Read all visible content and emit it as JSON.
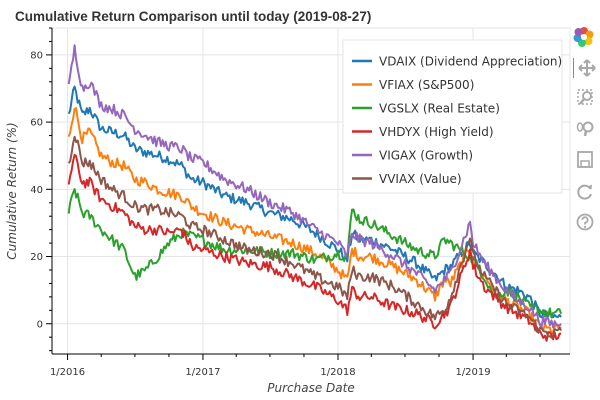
{
  "chart_data": {
    "type": "line",
    "title": "Cumulative Return Comparison until today (2019-08-27)",
    "xlabel": "Purchase Date",
    "ylabel": "Cumulative Return (%)",
    "x_tick_labels": [
      "1/2016",
      "1/2017",
      "1/2018",
      "1/2019"
    ],
    "xlim": [
      "2015-11-20",
      "2019-09-20"
    ],
    "ylim": [
      -9,
      88
    ],
    "y_ticks": [
      0,
      20,
      40,
      60,
      80
    ],
    "grid": true,
    "legend_position": "top-right",
    "series": [
      {
        "name": "VDAIX (Dividend Appreciation)",
        "color": "#1f77b4",
        "x": [
          "2016-01-04",
          "2016-01-20",
          "2016-02-10",
          "2016-03-01",
          "2016-04-01",
          "2016-05-01",
          "2016-06-01",
          "2016-07-01",
          "2016-08-01",
          "2016-09-01",
          "2016-10-01",
          "2016-11-04",
          "2016-12-01",
          "2017-01-01",
          "2017-03-01",
          "2017-05-01",
          "2017-07-01",
          "2017-09-01",
          "2017-11-01",
          "2018-01-01",
          "2018-01-26",
          "2018-02-08",
          "2018-03-01",
          "2018-04-01",
          "2018-06-01",
          "2018-08-01",
          "2018-09-20",
          "2018-10-15",
          "2018-11-01",
          "2018-12-24",
          "2019-01-01",
          "2019-02-01",
          "2019-03-01",
          "2019-04-01",
          "2019-05-01",
          "2019-06-01",
          "2019-07-01",
          "2019-08-01",
          "2019-08-27"
        ],
        "y": [
          62,
          70,
          62,
          64,
          58,
          57,
          56,
          52,
          51,
          50,
          49,
          47,
          43,
          42,
          38,
          36,
          33,
          31,
          27,
          22,
          19,
          27,
          25,
          25,
          22,
          18,
          13,
          16,
          17,
          24,
          21,
          18,
          15,
          11,
          10,
          8,
          3,
          2,
          2
        ]
      },
      {
        "name": "VFIAX (S&P500)",
        "color": "#ff7f0e",
        "x": [
          "2016-01-04",
          "2016-01-20",
          "2016-02-10",
          "2016-03-01",
          "2016-04-01",
          "2016-05-01",
          "2016-06-01",
          "2016-07-01",
          "2016-08-01",
          "2016-09-01",
          "2016-10-01",
          "2016-11-04",
          "2016-12-01",
          "2017-01-01",
          "2017-03-01",
          "2017-05-01",
          "2017-07-01",
          "2017-09-01",
          "2017-11-01",
          "2018-01-01",
          "2018-01-26",
          "2018-02-08",
          "2018-03-01",
          "2018-04-01",
          "2018-06-01",
          "2018-08-01",
          "2018-09-20",
          "2018-10-15",
          "2018-11-01",
          "2018-12-24",
          "2019-01-01",
          "2019-02-01",
          "2019-03-01",
          "2019-04-01",
          "2019-05-01",
          "2019-06-01",
          "2019-07-01",
          "2019-08-01",
          "2019-08-27"
        ],
        "y": [
          55,
          65,
          55,
          57,
          50,
          48,
          47,
          43,
          42,
          40,
          39,
          38,
          35,
          33,
          30,
          28,
          26,
          24,
          21,
          16,
          13,
          22,
          20,
          20,
          17,
          13,
          8,
          13,
          12,
          23,
          19,
          14,
          10,
          7,
          5,
          3,
          -1,
          -2,
          -1
        ]
      },
      {
        "name": "VGSLX (Real Estate)",
        "color": "#2ca02c",
        "x": [
          "2016-01-04",
          "2016-01-20",
          "2016-02-10",
          "2016-03-01",
          "2016-04-01",
          "2016-05-01",
          "2016-06-01",
          "2016-07-01",
          "2016-08-01",
          "2016-09-01",
          "2016-10-01",
          "2016-11-04",
          "2016-12-01",
          "2017-01-01",
          "2017-03-01",
          "2017-05-01",
          "2017-07-01",
          "2017-09-01",
          "2017-11-01",
          "2018-01-01",
          "2018-01-26",
          "2018-02-08",
          "2018-03-01",
          "2018-04-01",
          "2018-06-01",
          "2018-08-01",
          "2018-09-20",
          "2018-10-15",
          "2018-11-01",
          "2018-12-24",
          "2019-01-01",
          "2019-02-01",
          "2019-03-01",
          "2019-04-01",
          "2019-05-01",
          "2019-06-01",
          "2019-07-01",
          "2019-08-01",
          "2019-08-27"
        ],
        "y": [
          33,
          40,
          33,
          32,
          28,
          25,
          22,
          14,
          16,
          20,
          24,
          27,
          26,
          25,
          22,
          22,
          21,
          21,
          19,
          21,
          20,
          34,
          31,
          30,
          26,
          22,
          20,
          25,
          24,
          20,
          19,
          14,
          8,
          10,
          8,
          5,
          4,
          3,
          3
        ]
      },
      {
        "name": "VHDYX (High Yield)",
        "color": "#d62728",
        "x": [
          "2016-01-04",
          "2016-01-20",
          "2016-02-10",
          "2016-03-01",
          "2016-04-01",
          "2016-05-01",
          "2016-06-01",
          "2016-07-01",
          "2016-08-01",
          "2016-09-01",
          "2016-10-01",
          "2016-11-04",
          "2016-12-01",
          "2017-01-01",
          "2017-03-01",
          "2017-05-01",
          "2017-07-01",
          "2017-09-01",
          "2017-11-01",
          "2018-01-01",
          "2018-01-26",
          "2018-02-08",
          "2018-03-01",
          "2018-04-01",
          "2018-06-01",
          "2018-08-01",
          "2018-09-20",
          "2018-10-15",
          "2018-11-01",
          "2018-12-24",
          "2019-01-01",
          "2019-02-01",
          "2019-03-01",
          "2019-04-01",
          "2019-05-01",
          "2019-06-01",
          "2019-07-01",
          "2019-08-01",
          "2019-08-27"
        ],
        "y": [
          42,
          50,
          42,
          42,
          37,
          35,
          33,
          29,
          28,
          28,
          27,
          28,
          23,
          22,
          20,
          18,
          17,
          14,
          11,
          7,
          4,
          10,
          8,
          8,
          5,
          3,
          0,
          3,
          5,
          22,
          17,
          11,
          8,
          5,
          3,
          1,
          -3,
          -4,
          -3
        ]
      },
      {
        "name": "VIGAX (Growth)",
        "color": "#9467bd",
        "x": [
          "2016-01-04",
          "2016-01-20",
          "2016-02-10",
          "2016-03-01",
          "2016-04-01",
          "2016-05-01",
          "2016-06-01",
          "2016-07-01",
          "2016-08-01",
          "2016-09-01",
          "2016-10-01",
          "2016-11-04",
          "2016-12-01",
          "2017-01-01",
          "2017-03-01",
          "2017-05-01",
          "2017-07-01",
          "2017-09-01",
          "2017-11-01",
          "2018-01-01",
          "2018-01-26",
          "2018-02-08",
          "2018-03-01",
          "2018-04-01",
          "2018-06-01",
          "2018-08-01",
          "2018-09-20",
          "2018-10-15",
          "2018-11-01",
          "2018-12-24",
          "2019-01-01",
          "2019-02-01",
          "2019-03-01",
          "2019-04-01",
          "2019-05-01",
          "2019-06-01",
          "2019-07-01",
          "2019-08-01",
          "2019-08-27"
        ],
        "y": [
          70,
          82,
          70,
          72,
          65,
          64,
          62,
          58,
          56,
          54,
          53,
          52,
          49,
          48,
          43,
          40,
          36,
          33,
          28,
          24,
          20,
          27,
          25,
          24,
          20,
          15,
          10,
          13,
          15,
          30,
          24,
          18,
          14,
          10,
          7,
          5,
          1,
          0,
          0
        ]
      },
      {
        "name": "VVIAX (Value)",
        "color": "#8c564b",
        "x": [
          "2016-01-04",
          "2016-01-20",
          "2016-02-10",
          "2016-03-01",
          "2016-04-01",
          "2016-05-01",
          "2016-06-01",
          "2016-07-01",
          "2016-08-01",
          "2016-09-01",
          "2016-10-01",
          "2016-11-04",
          "2016-12-01",
          "2017-01-01",
          "2017-03-01",
          "2017-05-01",
          "2017-07-01",
          "2017-09-01",
          "2017-11-01",
          "2018-01-01",
          "2018-01-26",
          "2018-02-08",
          "2018-03-01",
          "2018-04-01",
          "2018-06-01",
          "2018-08-01",
          "2018-09-20",
          "2018-10-15",
          "2018-11-01",
          "2018-12-24",
          "2019-01-01",
          "2019-02-01",
          "2019-03-01",
          "2019-04-01",
          "2019-05-01",
          "2019-06-01",
          "2019-07-01",
          "2019-08-01",
          "2019-08-27"
        ],
        "y": [
          47,
          57,
          48,
          48,
          43,
          40,
          38,
          35,
          34,
          34,
          33,
          32,
          29,
          28,
          25,
          22,
          21,
          18,
          14,
          11,
          8,
          16,
          14,
          14,
          11,
          6,
          2,
          4,
          8,
          26,
          20,
          14,
          10,
          6,
          4,
          2,
          -2,
          -3,
          -2
        ]
      }
    ]
  },
  "toolbar": {
    "items": [
      {
        "name": "bokeh-logo-icon",
        "interactable": false
      },
      {
        "name": "pan-tool-icon",
        "interactable": true
      },
      {
        "name": "box-zoom-tool-icon",
        "interactable": true
      },
      {
        "name": "wheel-zoom-tool-icon",
        "interactable": true
      },
      {
        "name": "save-tool-icon",
        "interactable": true
      },
      {
        "name": "reset-tool-icon",
        "interactable": true
      },
      {
        "name": "help-tool-icon",
        "interactable": true
      }
    ],
    "active_color": "#26aae1",
    "icon_color": "#a9a9a9"
  }
}
